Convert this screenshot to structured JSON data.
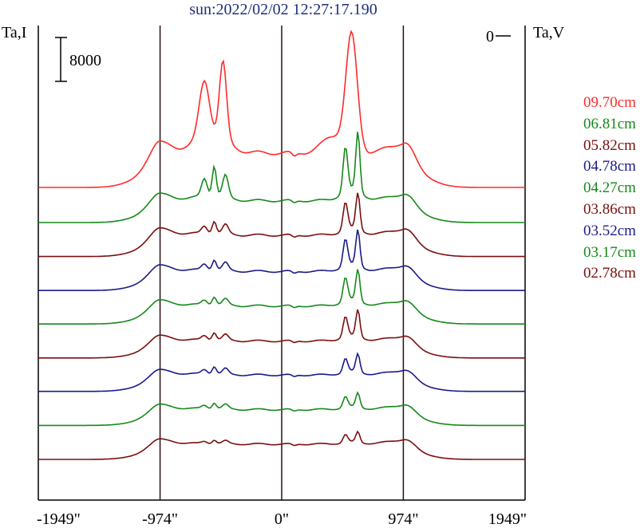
{
  "header": {
    "title": "sun:2022/02/02 12:27:17.190",
    "left_axis_label": "Ta,I",
    "right_axis_label": "Ta,V",
    "scale_bar_label": "8000",
    "zero_label": "0"
  },
  "chart_data": {
    "type": "line",
    "title": "sun:2022/02/02 12:27:17.190",
    "xlabel": "",
    "ylabel": "Ta,I",
    "y2label": "Ta,V",
    "x_ticks": [
      "-1949\"",
      "-974\"",
      "0\"",
      "974\"",
      "1949\""
    ],
    "x_tick_values": [
      -1949,
      -974,
      0,
      974,
      1949
    ],
    "xlim": [
      -1949,
      1949
    ],
    "vertical_markers": [
      -974,
      0,
      974
    ],
    "scale_bar": 8000,
    "grid": false,
    "legend_position": "right",
    "series": [
      {
        "name": "09.70cm",
        "color": "#ff2a2a",
        "baseline": 56000,
        "disc_level": 6300,
        "west_peak": 20300,
        "east_peak": 27200
      },
      {
        "name": "06.81cm",
        "color": "#16891a",
        "baseline": 49600,
        "disc_level": 4000,
        "west_peak": 9600,
        "east_peak": 14800
      },
      {
        "name": "05.82cm",
        "color": "#7a0e10",
        "baseline": 43400,
        "disc_level": 3900,
        "west_peak": 6200,
        "east_peak": 10500
      },
      {
        "name": "04.78cm",
        "color": "#1a1a88",
        "baseline": 37200,
        "disc_level": 3500,
        "west_peak": 5400,
        "east_peak": 10000
      },
      {
        "name": "04.27cm",
        "color": "#16891a",
        "baseline": 31100,
        "disc_level": 3300,
        "west_peak": 4800,
        "east_peak": 9000
      },
      {
        "name": "03.86cm",
        "color": "#7a0e10",
        "baseline": 24900,
        "disc_level": 3100,
        "west_peak": 4500,
        "east_peak": 8000
      },
      {
        "name": "03.52cm",
        "color": "#1a1a88",
        "baseline": 18800,
        "disc_level": 3000,
        "west_peak": 4400,
        "east_peak": 6300
      },
      {
        "name": "03.17cm",
        "color": "#16891a",
        "baseline": 12600,
        "disc_level": 2900,
        "west_peak": 4000,
        "east_peak": 5500
      },
      {
        "name": "02.78cm",
        "color": "#7a0e10",
        "baseline": 6400,
        "disc_level": 2800,
        "west_peak": 3500,
        "east_peak": 4700
      }
    ]
  }
}
